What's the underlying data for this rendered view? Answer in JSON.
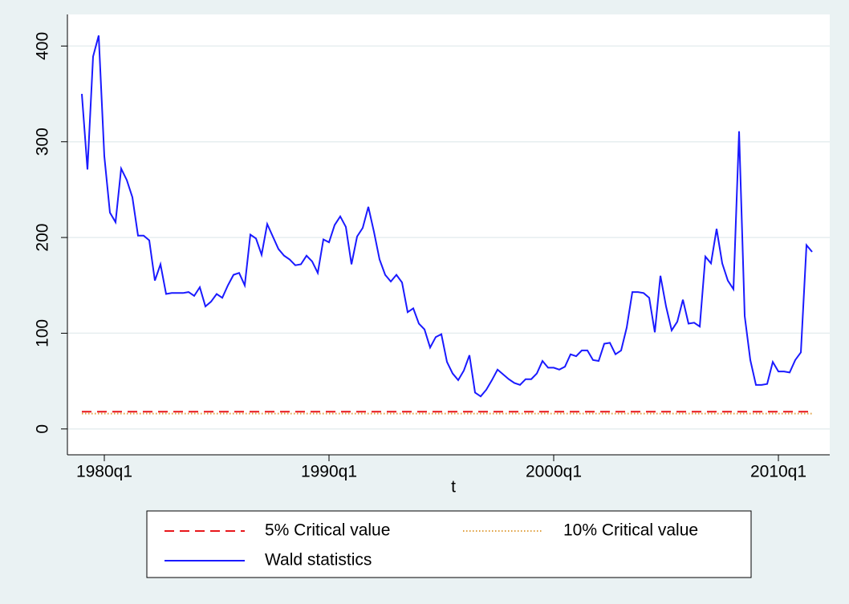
{
  "chart_data": {
    "type": "line",
    "x_label": "t",
    "x": [
      76,
      77,
      78,
      79,
      80,
      81,
      82,
      83,
      84,
      85,
      86,
      87,
      88,
      89,
      90,
      91,
      92,
      93,
      94,
      95,
      96,
      97,
      98,
      99,
      100,
      101,
      102,
      103,
      104,
      105,
      106,
      107,
      108,
      109,
      110,
      111,
      112,
      113,
      114,
      115,
      116,
      117,
      118,
      119,
      120,
      121,
      122,
      123,
      124,
      125,
      126,
      127,
      128,
      129,
      130,
      131,
      132,
      133,
      134,
      135,
      136,
      137,
      138,
      139,
      140,
      141,
      142,
      143,
      144,
      145,
      146,
      147,
      148,
      149,
      150,
      151,
      152,
      153,
      154,
      155,
      156,
      157,
      158,
      159,
      160,
      161,
      162,
      163,
      164,
      165,
      166,
      167,
      168,
      169,
      170,
      171,
      172,
      173,
      174,
      175,
      176,
      177,
      178,
      179,
      180,
      181,
      182,
      183,
      184,
      185,
      186,
      187,
      188,
      189,
      190,
      191,
      192,
      193,
      194,
      195,
      196,
      197,
      198,
      199,
      200,
      201,
      202,
      203,
      204,
      205,
      206
    ],
    "series": [
      {
        "name": "Wald statistics",
        "color": "#1a1aff",
        "values": [
          350,
          271,
          389,
          411,
          285,
          226,
          216,
          272,
          260,
          242,
          202,
          202,
          197,
          155,
          172,
          141,
          142,
          142,
          142,
          143,
          139,
          148,
          128,
          133,
          141,
          137,
          150,
          161,
          163,
          150,
          203,
          199,
          182,
          214,
          201,
          188,
          181,
          177,
          171,
          172,
          181,
          175,
          163,
          198,
          195,
          213,
          222,
          211,
          172,
          201,
          210,
          232,
          206,
          177,
          161,
          154,
          161,
          153,
          122,
          126,
          110,
          104,
          85,
          96,
          99,
          70,
          58,
          51,
          61,
          77,
          38,
          34,
          41,
          51,
          62,
          57,
          52,
          48,
          46,
          52,
          52,
          58,
          71,
          64,
          64,
          62,
          65,
          78,
          76,
          82,
          82,
          72,
          71,
          89,
          90,
          78,
          82,
          106,
          143,
          143,
          142,
          137,
          101,
          160,
          128,
          103,
          112,
          135,
          110,
          111,
          107,
          180,
          173,
          209,
          173,
          155,
          146,
          311,
          118,
          72,
          46,
          46,
          47,
          70,
          60,
          60,
          59,
          72,
          80,
          192,
          185
        ]
      }
    ],
    "reference_lines": [
      {
        "name": "5% Critical value",
        "value": 18,
        "color": "#e8161b",
        "style": "dashed"
      },
      {
        "name": "10% Critical value",
        "value": 16,
        "color": "#e0a040",
        "style": "dotted"
      }
    ],
    "xlim": [
      73.43,
      209.14
    ],
    "xticks": [
      {
        "value": 80,
        "label": "1980q1"
      },
      {
        "value": 120,
        "label": "1990q1"
      },
      {
        "value": 160,
        "label": "2000q1"
      },
      {
        "value": 200,
        "label": "2010q1"
      }
    ],
    "ylim": [
      -27,
      433
    ],
    "yticks": [
      0,
      100,
      200,
      300,
      400
    ],
    "grid": true
  }
}
